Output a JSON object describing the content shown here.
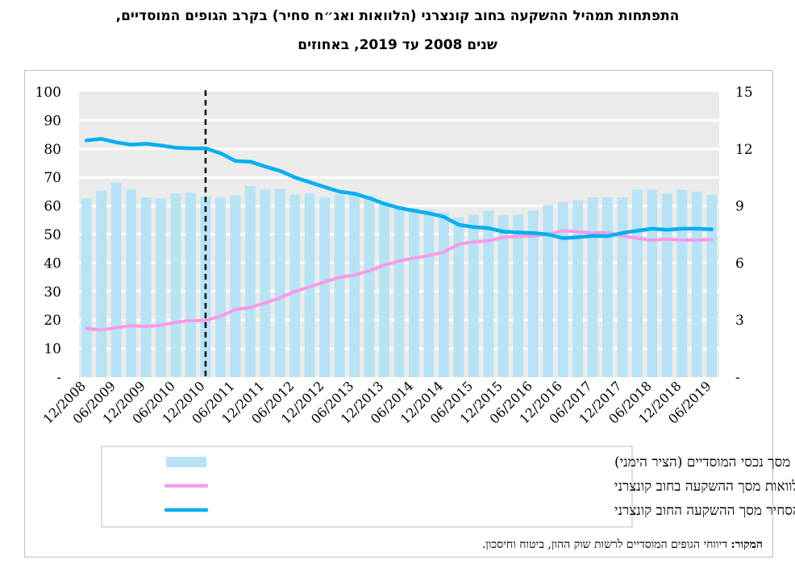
{
  "title_line1": "התפתחות תמהיל ההשקעה בחוב קונצרני (הלוואות ואג״ח סחיר) בקרב הגופים המוסדיים,",
  "title_line2": "שנים 2008 עד 2019, באחוזים",
  "source_label": "המקור:",
  "source_text": "דיווחי הגופים המוסדיים לרשות שוק ההון, ביטוח וחיסכון.",
  "colors": {
    "bars": "#b7e3f5",
    "loans": "#f79be8",
    "bonds": "#00aeef",
    "plot_bg": "#ebebeb",
    "grid": "#ffffff"
  },
  "chart_data": {
    "type": "bar+line",
    "x": [
      "12/2008",
      "03/2009",
      "06/2009",
      "09/2009",
      "12/2009",
      "03/2010",
      "06/2010",
      "09/2010",
      "12/2010",
      "03/2011",
      "06/2011",
      "09/2011",
      "12/2011",
      "03/2012",
      "06/2012",
      "09/2012",
      "12/2012",
      "03/2013",
      "06/2013",
      "09/2013",
      "12/2013",
      "03/2014",
      "06/2014",
      "09/2014",
      "12/2014",
      "03/2015",
      "06/2015",
      "09/2015",
      "12/2015",
      "03/2016",
      "06/2016",
      "09/2016",
      "12/2016",
      "03/2017",
      "06/2017",
      "09/2017",
      "12/2017",
      "03/2018",
      "06/2018",
      "09/2018",
      "12/2018",
      "03/2019",
      "06/2019"
    ],
    "x_tick_labels": [
      "12/2008",
      "06/2009",
      "12/2009",
      "06/2010",
      "12/2010",
      "06/2011",
      "12/2011",
      "06/2012",
      "12/2012",
      "06/2013",
      "12/2013",
      "06/2014",
      "12/2014",
      "06/2015",
      "12/2015",
      "06/2016",
      "12/2016",
      "06/2017",
      "12/2017",
      "06/2018",
      "12/2018",
      "06/2019"
    ],
    "y_left": {
      "ticks": [
        "100",
        "90",
        "80",
        "70",
        "60",
        "50",
        "40",
        "30",
        "20",
        "10",
        "-"
      ],
      "ylim": [
        0,
        100
      ]
    },
    "y_right": {
      "ticks": [
        "15",
        "12",
        "9",
        "6",
        "3",
        "-"
      ],
      "ylim": [
        0,
        15
      ]
    },
    "vertical_marker_at": "12/2010",
    "series": [
      {
        "name": "שיעור החוב הקונצרני מסך נכסי המוסדיים (הציר הימני)",
        "kind": "bar",
        "axis": "right",
        "values": [
          9.4,
          9.8,
          10.25,
          9.85,
          9.45,
          9.4,
          9.65,
          9.7,
          9.5,
          9.45,
          9.55,
          10.05,
          9.85,
          9.9,
          9.6,
          9.65,
          9.45,
          9.6,
          9.75,
          9.55,
          9.2,
          9.0,
          8.9,
          8.8,
          8.65,
          8.4,
          8.55,
          8.75,
          8.5,
          8.55,
          8.75,
          9.05,
          9.2,
          9.3,
          9.45,
          9.45,
          9.45,
          9.85,
          9.85,
          9.65,
          9.85,
          9.75,
          9.6
        ]
      },
      {
        "name": "שיעור ההלוואות מסך ההשקעה בחוב קונצרני",
        "kind": "line",
        "axis": "left",
        "values": [
          17,
          16.5,
          17.3,
          18,
          17.7,
          18.2,
          19.2,
          19.8,
          19.8,
          21.3,
          23.7,
          24.4,
          26,
          27.8,
          30,
          31.6,
          33.4,
          35,
          35.7,
          37.3,
          39.2,
          40.7,
          41.7,
          42.6,
          43.8,
          46.6,
          47.4,
          47.8,
          49,
          49.3,
          49.5,
          50,
          51.3,
          51,
          50.5,
          50.6,
          49.5,
          48.7,
          48,
          48.4,
          48,
          48,
          48.2
        ]
      },
      {
        "name": "שיעור האג״ח הסחיר מסך ההשקעה החוב קונצרני",
        "kind": "line",
        "axis": "left",
        "values": [
          83,
          83.5,
          82.3,
          81.5,
          81.8,
          81.2,
          80.4,
          80.2,
          80.2,
          78.5,
          75.8,
          75.5,
          73.8,
          72.3,
          70,
          68.3,
          66.6,
          65,
          64.3,
          62.7,
          60.8,
          59.3,
          58.3,
          57.4,
          56.2,
          53.4,
          52.6,
          52.2,
          51,
          50.7,
          50.5,
          50,
          48.7,
          49,
          49.5,
          49.4,
          50.5,
          51.3,
          52,
          51.6,
          52,
          52,
          51.8
        ]
      }
    ]
  }
}
